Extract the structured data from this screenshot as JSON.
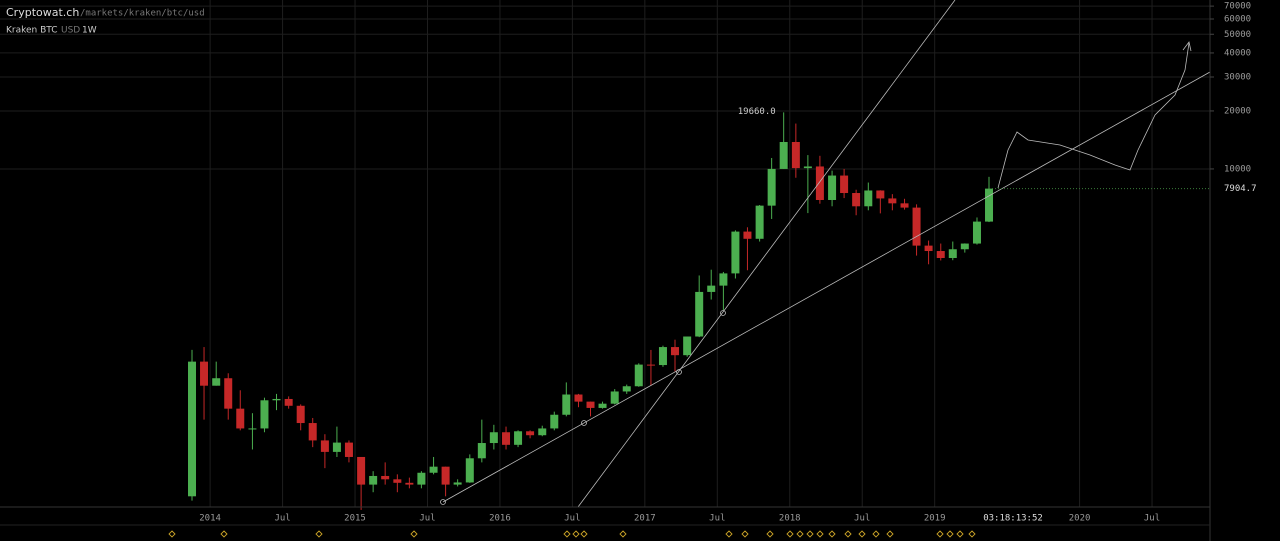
{
  "header": {
    "site": "Cryptowat.ch",
    "path": "/markets/kraken/btc/usd",
    "market": "Kraken BTC",
    "quote": "USD",
    "period": "1W",
    "time_label": "03:18:13:52"
  },
  "chart_data": {
    "type": "candlestick",
    "ylog": true,
    "grid": true,
    "up_color": "#4caf50",
    "down_color": "#c62828",
    "xlim": [
      2012.55,
      2020.9
    ],
    "ylim": [
      176,
      75300
    ],
    "xticks": [
      2014,
      {
        "value": 2014.5,
        "label": "Jul"
      },
      2015,
      {
        "value": 2015.5,
        "label": "Jul"
      },
      2016,
      {
        "value": 2016.5,
        "label": "Jul"
      },
      2017,
      {
        "value": 2017.5,
        "label": "Jul"
      },
      2018,
      {
        "value": 2018.5,
        "label": "Jul"
      },
      2019,
      2020,
      {
        "value": 2020.5,
        "label": "Jul"
      }
    ],
    "yticks": [
      10000,
      20000,
      30000,
      40000,
      50000,
      60000,
      70000
    ],
    "last_price": 7904.7,
    "x": [
      2013.875,
      2013.958,
      2014.042,
      2014.125,
      2014.208,
      2014.292,
      2014.375,
      2014.458,
      2014.542,
      2014.625,
      2014.708,
      2014.792,
      2014.875,
      2014.958,
      2015.042,
      2015.125,
      2015.208,
      2015.292,
      2015.375,
      2015.458,
      2015.542,
      2015.625,
      2015.708,
      2015.792,
      2015.875,
      2015.958,
      2016.042,
      2016.125,
      2016.208,
      2016.292,
      2016.375,
      2016.458,
      2016.542,
      2016.625,
      2016.708,
      2016.792,
      2016.875,
      2016.958,
      2017.042,
      2017.125,
      2017.208,
      2017.292,
      2017.375,
      2017.458,
      2017.542,
      2017.625,
      2017.708,
      2017.792,
      2017.875,
      2017.958,
      2018.042,
      2018.125,
      2018.208,
      2018.292,
      2018.375,
      2018.458,
      2018.542,
      2018.625,
      2018.708,
      2018.792,
      2018.875,
      2018.958,
      2019.042,
      2019.125,
      2019.208,
      2019.292,
      2019.375
    ],
    "open": [
      200,
      1000,
      750,
      820,
      570,
      450,
      450,
      630,
      640,
      590,
      480,
      390,
      340,
      380,
      320,
      230,
      255,
      245,
      235,
      230,
      265,
      285,
      230,
      236,
      315,
      378,
      430,
      370,
      435,
      415,
      450,
      530,
      675,
      620,
      575,
      605,
      700,
      745,
      965,
      960,
      1190,
      1080,
      1350,
      2300,
      2480,
      2870,
      4730,
      4340,
      6450,
      10000,
      13800,
      10100,
      10300,
      6900,
      9240,
      7500,
      6400,
      7730,
      7030,
      6630,
      6300,
      4000,
      3750,
      3450,
      3830,
      4100,
      5330
    ],
    "high": [
      1150,
      1190,
      1000,
      870,
      710,
      540,
      650,
      680,
      660,
      600,
      510,
      420,
      460,
      390,
      320,
      270,
      300,
      260,
      250,
      270,
      320,
      285,
      245,
      330,
      500,
      470,
      460,
      440,
      440,
      465,
      550,
      780,
      680,
      620,
      620,
      720,
      760,
      980,
      1150,
      1210,
      1300,
      1350,
      2800,
      3000,
      2920,
      4800,
      4980,
      6500,
      11400,
      19660,
      17200,
      11800,
      11700,
      9800,
      10000,
      7800,
      8500,
      7750,
      7400,
      7000,
      6550,
      4250,
      4100,
      4200,
      4110,
      5600,
      9100
    ],
    "low": [
      190,
      500,
      750,
      500,
      440,
      350,
      430,
      560,
      570,
      440,
      360,
      280,
      320,
      300,
      170,
      210,
      230,
      210,
      220,
      220,
      260,
      200,
      225,
      235,
      300,
      350,
      350,
      360,
      400,
      410,
      440,
      520,
      580,
      520,
      570,
      600,
      680,
      740,
      750,
      940,
      890,
      1060,
      1340,
      2100,
      1850,
      2700,
      2980,
      4200,
      5500,
      10000,
      9000,
      5900,
      6600,
      6400,
      7060,
      5750,
      6100,
      5880,
      6100,
      6150,
      3550,
      3200,
      3350,
      3360,
      3680,
      4050,
      5300
    ],
    "close": [
      1000,
      750,
      820,
      570,
      450,
      450,
      630,
      640,
      590,
      480,
      390,
      340,
      380,
      320,
      230,
      255,
      245,
      235,
      230,
      265,
      285,
      230,
      236,
      315,
      378,
      430,
      370,
      435,
      415,
      450,
      530,
      675,
      620,
      575,
      605,
      700,
      745,
      965,
      960,
      1190,
      1080,
      1350,
      2300,
      2480,
      2870,
      4730,
      4340,
      6450,
      10000,
      13800,
      10100,
      10300,
      6900,
      9240,
      7500,
      6400,
      7730,
      7030,
      6630,
      6300,
      4000,
      3750,
      3450,
      3830,
      4100,
      5330,
      7904.7
    ],
    "value_labels": {
      "high": {
        "49": "19660.0"
      }
    }
  }
}
